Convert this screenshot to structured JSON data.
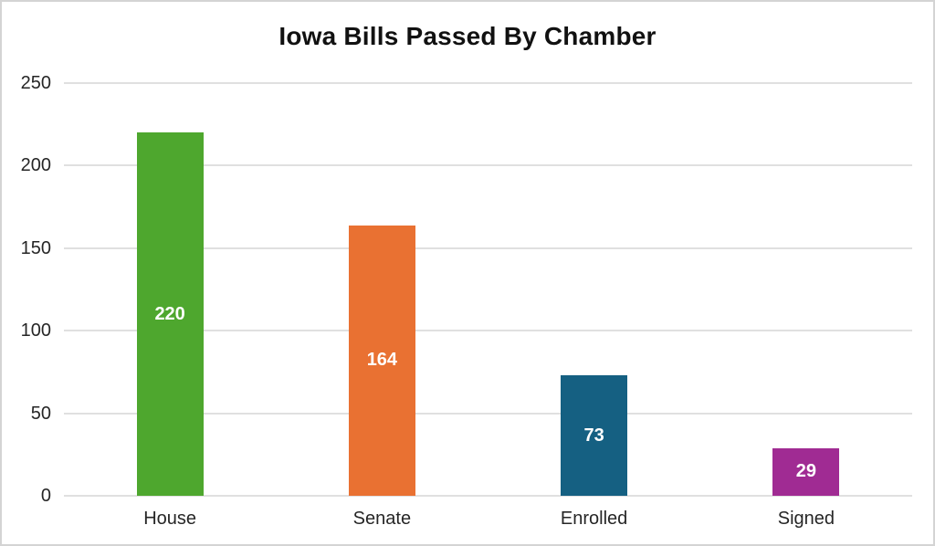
{
  "chart_data": {
    "type": "bar",
    "title": "Iowa Bills Passed By Chamber",
    "categories": [
      "House",
      "Senate",
      "Enrolled",
      "Signed"
    ],
    "values": [
      220,
      164,
      73,
      29
    ],
    "bar_colors": [
      "#4EA72E",
      "#E97132",
      "#156082",
      "#A02B93"
    ],
    "data_label_color": "#ffffff",
    "xlabel": "",
    "ylabel": "",
    "ylim": [
      0,
      250
    ],
    "yticks": [
      0,
      50,
      100,
      150,
      200,
      250
    ],
    "grid": "horizontal",
    "legend": "none"
  },
  "style": {
    "gridline_color": "#e0e0e0",
    "tick_text_color": "#262626",
    "title_color": "#111111",
    "frame_border_color": "#d4d4d4",
    "background_color": "#ffffff"
  }
}
